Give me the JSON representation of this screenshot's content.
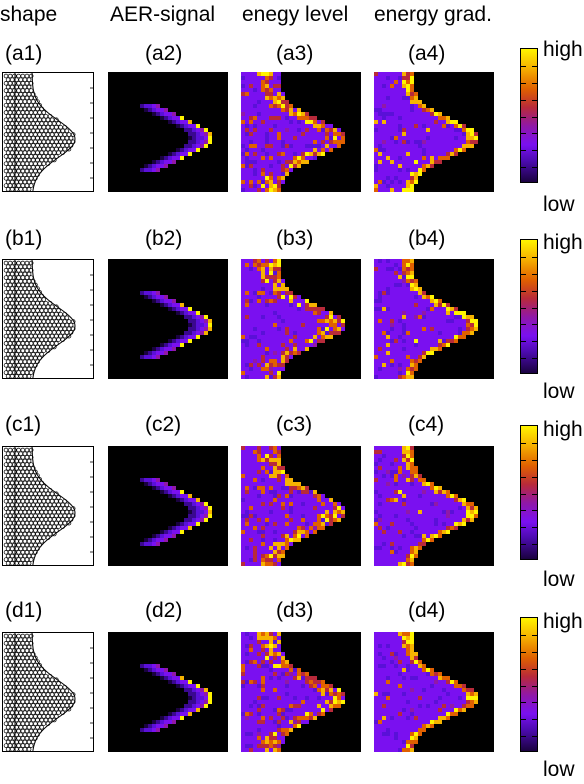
{
  "headers": {
    "shape": "shape",
    "aer": "AER-signal",
    "energy_level": "enegy level",
    "energy_grad": "energy grad."
  },
  "rows": [
    {
      "labels": [
        "(a1)",
        "(a2)",
        "(a3)",
        "(a4)"
      ]
    },
    {
      "labels": [
        "(b1)",
        "(b2)",
        "(b3)",
        "(b4)"
      ]
    },
    {
      "labels": [
        "(c1)",
        "(c2)",
        "(c3)",
        "(c4)"
      ]
    },
    {
      "labels": [
        "(d1)",
        "(d2)",
        "(d3)",
        "(d4)"
      ]
    }
  ],
  "colorbar": {
    "high_label": "high",
    "low_label": "low",
    "colors": [
      "#fff400",
      "#f6b300",
      "#e06000",
      "#b82a3a",
      "#9018a8",
      "#7a10f0",
      "#4c0bb0",
      "#1a0240"
    ]
  }
}
